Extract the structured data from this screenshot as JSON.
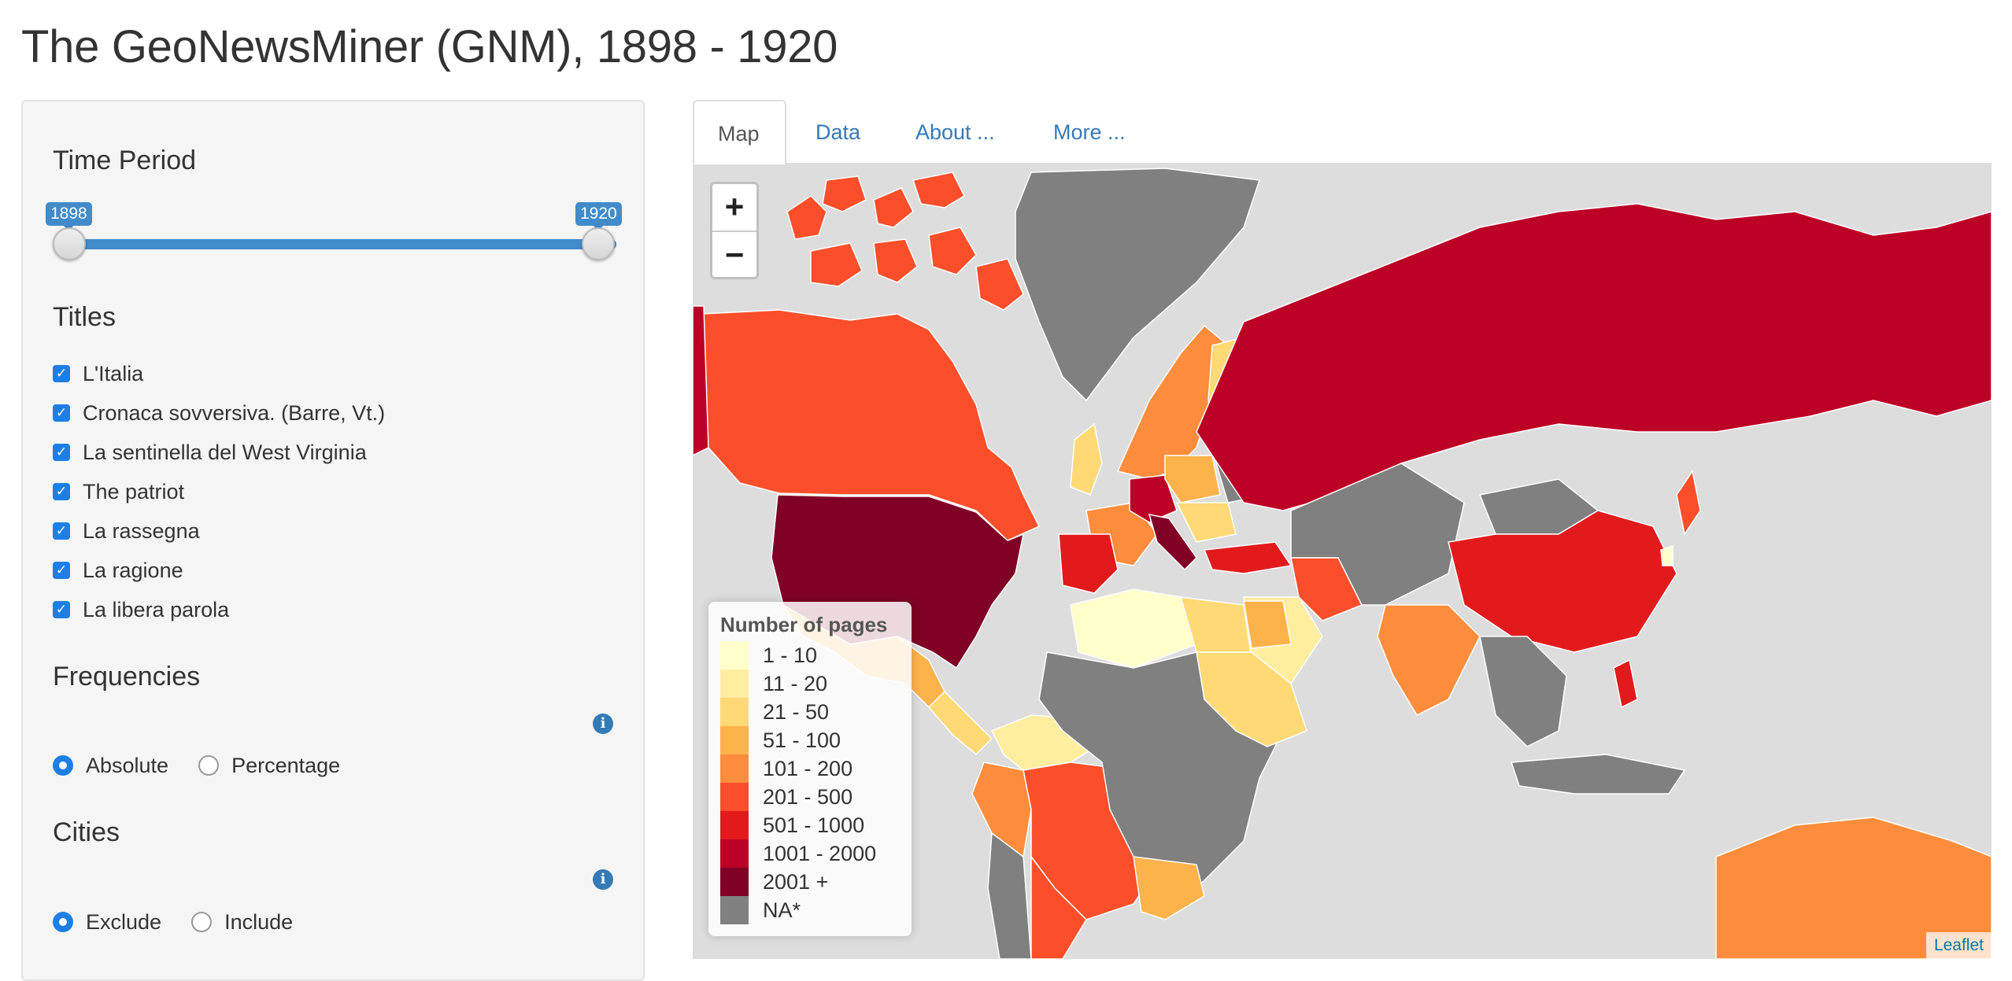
{
  "title": "The GeoNewsMiner (GNM), 1898 - 1920",
  "sidebar": {
    "time_period": {
      "heading": "Time Period",
      "start": "1898",
      "end": "1920",
      "range": [
        1898,
        1920
      ],
      "selected": [
        1898,
        1920
      ]
    },
    "titles": {
      "heading": "Titles",
      "items": [
        {
          "label": "L'Italia",
          "checked": true
        },
        {
          "label": "Cronaca sovversiva. (Barre, Vt.)",
          "checked": true
        },
        {
          "label": "La sentinella del West Virginia",
          "checked": true
        },
        {
          "label": "The patriot",
          "checked": true
        },
        {
          "label": "La rassegna",
          "checked": true
        },
        {
          "label": "La ragione",
          "checked": true
        },
        {
          "label": "La libera parola",
          "checked": true
        }
      ]
    },
    "frequencies": {
      "heading": "Frequencies",
      "options": [
        "Absolute",
        "Percentage"
      ],
      "selected": "Absolute"
    },
    "cities": {
      "heading": "Cities",
      "options": [
        "Exclude",
        "Include"
      ],
      "selected": "Exclude"
    }
  },
  "tabs": [
    {
      "label": "Map",
      "active": true
    },
    {
      "label": "Data",
      "active": false
    },
    {
      "label": "About ...",
      "active": false
    },
    {
      "label": "More ...",
      "active": false
    }
  ],
  "map": {
    "zoom_in": "+",
    "zoom_out": "−",
    "attribution": "Leaflet",
    "legend": {
      "title": "Number of pages",
      "items": [
        {
          "label": "1 - 10",
          "color": "#ffffcc"
        },
        {
          "label": "11 - 20",
          "color": "#ffeda0"
        },
        {
          "label": "21 - 50",
          "color": "#fed976"
        },
        {
          "label": "51 - 100",
          "color": "#feb24c"
        },
        {
          "label": "101 - 200",
          "color": "#fd8d3c"
        },
        {
          "label": "201 - 500",
          "color": "#fc4e2a"
        },
        {
          "label": "501 - 1000",
          "color": "#e31a1c"
        },
        {
          "label": "1001 - 2000",
          "color": "#bd0026"
        },
        {
          "label": "2001 +",
          "color": "#800026"
        },
        {
          "label": "NA*",
          "color": "#808080"
        }
      ]
    },
    "colors": {
      "ocean": "#dddddd",
      "na": "#808080",
      "c1": "#ffffcc",
      "c2": "#ffeda0",
      "c3": "#fed976",
      "c4": "#feb24c",
      "c5": "#fd8d3c",
      "c6": "#fc4e2a",
      "c7": "#e31a1c",
      "c8": "#bd0026",
      "c9": "#800026"
    }
  }
}
